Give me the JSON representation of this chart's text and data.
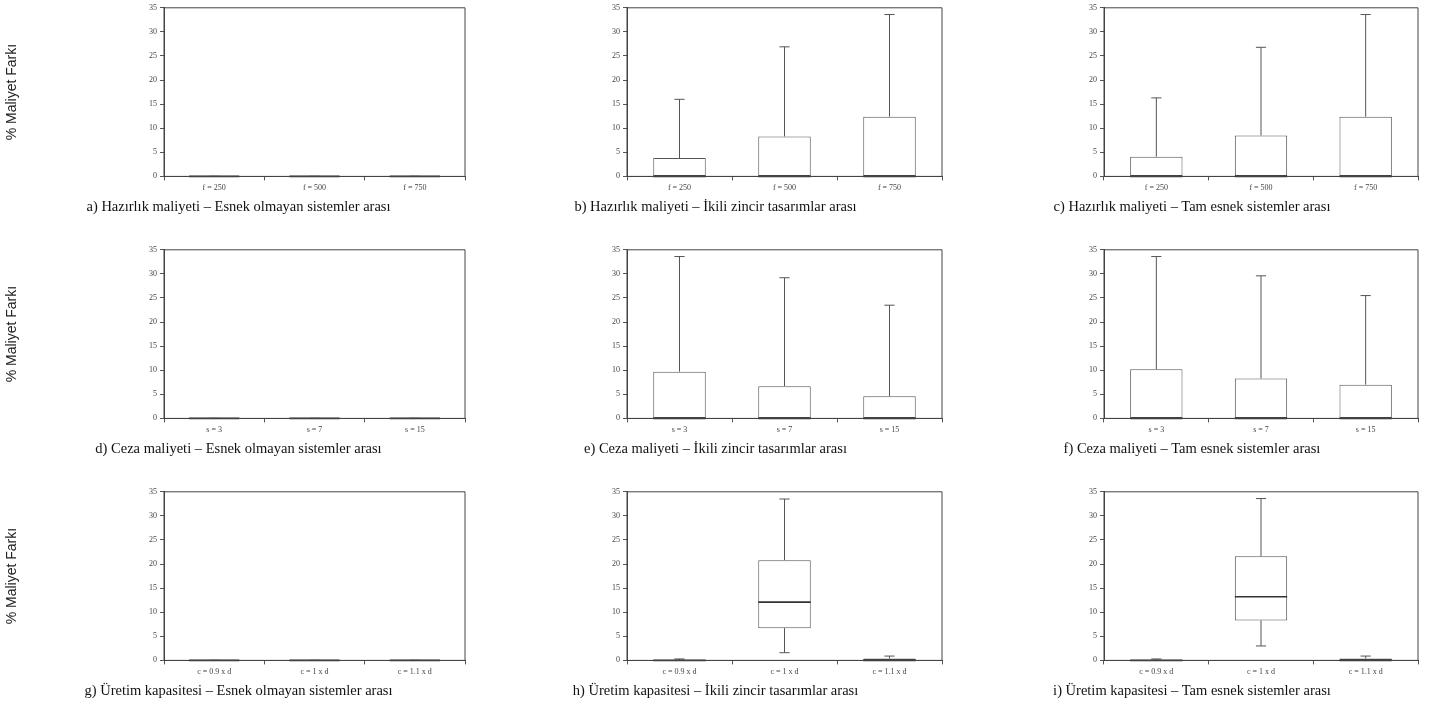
{
  "chart_data": [
    {
      "type": "box",
      "title": "a) Hazırlık maliyeti – Esnek olmayan sistemler arası",
      "ylabel": "% Maliyet Farkı",
      "categories": [
        "f = 250",
        "f = 500",
        "f = 750"
      ],
      "color": "#555555",
      "ylim": [
        0,
        35
      ],
      "yticks": [
        0,
        5,
        10,
        15,
        20,
        25,
        30,
        35
      ],
      "boxes": [
        {
          "low": 0,
          "q1": 0,
          "median": 0,
          "q3": 0,
          "high": 0
        },
        {
          "low": 0,
          "q1": 0,
          "median": 0,
          "q3": 0,
          "high": 0
        },
        {
          "low": 0,
          "q1": 0,
          "median": 0,
          "q3": 0,
          "high": 0
        }
      ]
    },
    {
      "type": "box",
      "title": "b) Hazırlık maliyeti – İkili zincir tasarımlar arası",
      "categories": [
        "f = 250",
        "f = 500",
        "f = 750"
      ],
      "color": "#555555",
      "ylim": [
        0,
        35
      ],
      "yticks": [
        0,
        5,
        10,
        15,
        20,
        25,
        30,
        35
      ],
      "boxes": [
        {
          "low": 0,
          "q1": 0,
          "median": 0,
          "q3": 3.8,
          "high": 16
        },
        {
          "low": 0,
          "q1": 0,
          "median": 0,
          "q3": 8.3,
          "high": 26.9
        },
        {
          "low": 0,
          "q1": 0,
          "median": 0,
          "q3": 12.4,
          "high": 33.6
        }
      ]
    },
    {
      "type": "box",
      "title": "c) Hazırlık maliyeti – Tam esnek sistemler arası",
      "categories": [
        "f = 250",
        "f = 500",
        "f = 750"
      ],
      "color": "#555555",
      "ylim": [
        0,
        35
      ],
      "yticks": [
        0,
        5,
        10,
        15,
        20,
        25,
        30,
        35
      ],
      "boxes": [
        {
          "low": 0,
          "q1": 0,
          "median": 0,
          "q3": 4.1,
          "high": 16.3
        },
        {
          "low": 0,
          "q1": 0,
          "median": 0,
          "q3": 8.5,
          "high": 26.8
        },
        {
          "low": 0,
          "q1": 0,
          "median": 0,
          "q3": 12.4,
          "high": 33.6
        }
      ]
    },
    {
      "type": "box",
      "title": "d) Ceza maliyeti – Esnek olmayan sistemler arası",
      "ylabel": "% Maliyet Farkı",
      "categories": [
        "s = 3",
        "s = 7",
        "s = 15"
      ],
      "color": "#555555",
      "ylim": [
        0,
        35
      ],
      "yticks": [
        0,
        5,
        10,
        15,
        20,
        25,
        30,
        35
      ],
      "boxes": [
        {
          "low": 0,
          "q1": 0,
          "median": 0,
          "q3": 0,
          "high": 0
        },
        {
          "low": 0,
          "q1": 0,
          "median": 0,
          "q3": 0,
          "high": 0
        },
        {
          "low": 0,
          "q1": 0,
          "median": 0,
          "q3": 0,
          "high": 0
        }
      ]
    },
    {
      "type": "box",
      "title": "e) Ceza maliyeti – İkili zincir tasarımlar arası",
      "categories": [
        "s = 3",
        "s = 7",
        "s = 15"
      ],
      "color": "#555555",
      "ylim": [
        0,
        35
      ],
      "yticks": [
        0,
        5,
        10,
        15,
        20,
        25,
        30,
        35
      ],
      "boxes": [
        {
          "low": 0,
          "q1": 0,
          "median": 0,
          "q3": 9.7,
          "high": 33.6
        },
        {
          "low": 0,
          "q1": 0,
          "median": 0,
          "q3": 6.7,
          "high": 29.2
        },
        {
          "low": 0,
          "q1": 0,
          "median": 0,
          "q3": 4.6,
          "high": 23.5
        }
      ]
    },
    {
      "type": "box",
      "title": "f) Ceza maliyeti – Tam esnek sistemler arası",
      "categories": [
        "s = 3",
        "s = 7",
        "s = 15"
      ],
      "color": "#555555",
      "ylim": [
        0,
        35
      ],
      "yticks": [
        0,
        5,
        10,
        15,
        20,
        25,
        30,
        35
      ],
      "boxes": [
        {
          "low": 0,
          "q1": 0,
          "median": 0,
          "q3": 10.2,
          "high": 33.6
        },
        {
          "low": 0,
          "q1": 0,
          "median": 0,
          "q3": 8.3,
          "high": 29.6
        },
        {
          "low": 0,
          "q1": 0,
          "median": 0,
          "q3": 7.0,
          "high": 25.5
        }
      ]
    },
    {
      "type": "box",
      "title": "g) Üretim kapasitesi – Esnek olmayan sistemler arası",
      "ylabel": "% Maliyet Farkı",
      "categories": [
        "c = 0.9 x d",
        "c = 1 x d",
        "c = 1.1 x d"
      ],
      "color": "#555555",
      "ylim": [
        0,
        35
      ],
      "yticks": [
        0,
        5,
        10,
        15,
        20,
        25,
        30,
        35
      ],
      "boxes": [
        {
          "low": 0,
          "q1": 0,
          "median": 0,
          "q3": 0,
          "high": 0
        },
        {
          "low": 0,
          "q1": 0,
          "median": 0,
          "q3": 0,
          "high": 0
        },
        {
          "low": 0,
          "q1": 0,
          "median": 0,
          "q3": 0,
          "high": 0
        }
      ]
    },
    {
      "type": "box",
      "title": "h) Üretim kapasitesi – İkili zincir tasarımlar arası",
      "categories": [
        "c = 0.9 x d",
        "c = 1 x d",
        "c = 1.1 x d"
      ],
      "color": "#555555",
      "ylim": [
        0,
        35
      ],
      "yticks": [
        0,
        5,
        10,
        15,
        20,
        25,
        30,
        35
      ],
      "boxes": [
        {
          "low": 0,
          "q1": 0,
          "median": 0,
          "q3": 0,
          "high": 0.3
        },
        {
          "low": 1.6,
          "q1": 6.7,
          "median": 12.1,
          "q3": 20.8,
          "high": 33.5
        },
        {
          "low": 0,
          "q1": 0,
          "median": 0,
          "q3": 0.4,
          "high": 0.9
        }
      ]
    },
    {
      "type": "box",
      "title": "i) Üretim kapasitesi – Tam esnek sistemler arası",
      "categories": [
        "c = 0.9 x d",
        "c = 1 x d",
        "c = 1.1 x d"
      ],
      "color": "#555555",
      "ylim": [
        0,
        35
      ],
      "yticks": [
        0,
        5,
        10,
        15,
        20,
        25,
        30,
        35
      ],
      "boxes": [
        {
          "low": 0,
          "q1": 0,
          "median": 0,
          "q3": 0.1,
          "high": 0.3
        },
        {
          "low": 3.0,
          "q1": 8.3,
          "median": 13.2,
          "q3": 21.6,
          "high": 33.6
        },
        {
          "low": 0,
          "q1": 0,
          "median": 0,
          "q3": 0.4,
          "high": 0.9
        }
      ]
    }
  ]
}
